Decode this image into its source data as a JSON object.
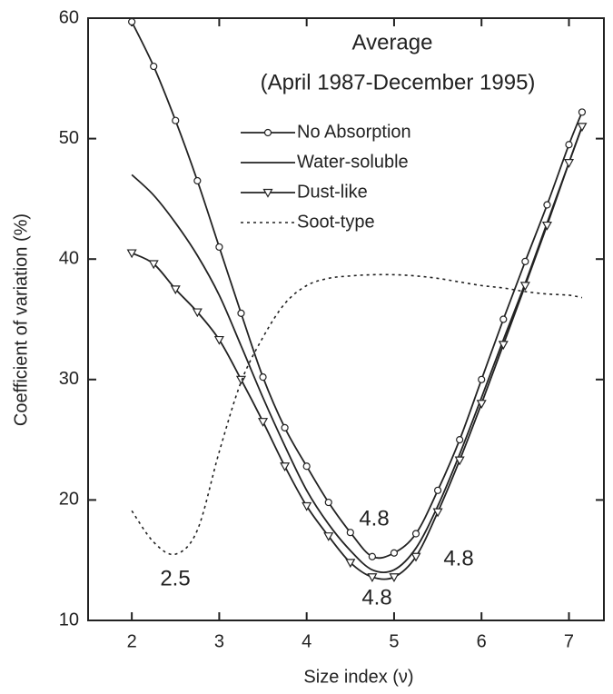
{
  "chart_data": {
    "type": "line",
    "title": "Average",
    "subtitle": "(April 1987-December 1995)",
    "x_label": "Size index (ν)",
    "y_label": "Coefficient of variation (%)",
    "x": [
      2,
      2.25,
      2.5,
      2.75,
      3,
      3.25,
      3.5,
      3.75,
      4,
      4.25,
      4.5,
      4.75,
      5,
      5.25,
      5.5,
      5.75,
      6,
      6.25,
      6.5,
      6.75,
      7,
      7.15
    ],
    "series": [
      {
        "name": "No Absorption",
        "color": "#222222",
        "marker": "circle",
        "values": [
          59.7,
          56,
          51.5,
          46.5,
          41,
          35.5,
          30.2,
          26,
          22.8,
          19.8,
          17.3,
          15.3,
          15.6,
          17.2,
          20.8,
          25,
          30,
          35,
          39.8,
          44.5,
          49.5,
          52.2
        ]
      },
      {
        "name": "Water-soluble",
        "color": "#222222",
        "marker": "none",
        "values": [
          47,
          45.3,
          43,
          40.3,
          37,
          32.8,
          28.5,
          24.5,
          20.8,
          18,
          15.8,
          14.2,
          14.2,
          16,
          19.5,
          23.8,
          28.5,
          33.3,
          38,
          43,
          48,
          51
        ]
      },
      {
        "name": "Dust-like",
        "color": "#222222",
        "marker": "triangle",
        "values": [
          40.5,
          39.6,
          37.5,
          35.6,
          33.3,
          30,
          26.5,
          22.8,
          19.5,
          17,
          14.8,
          13.6,
          13.6,
          15.3,
          19,
          23.3,
          28,
          32.9,
          37.8,
          42.8,
          48,
          51
        ]
      },
      {
        "name": "Soot-type",
        "color": "#222222",
        "marker": "none",
        "dashed": true,
        "values": [
          19.1,
          16.5,
          15.5,
          17.5,
          24,
          29.8,
          33.5,
          36.3,
          37.8,
          38.4,
          38.6,
          38.7,
          38.7,
          38.6,
          38.4,
          38.1,
          37.8,
          37.6,
          37.3,
          37.1,
          37,
          36.8
        ]
      }
    ],
    "annotations": [
      "4.8",
      "4.8",
      "4.8",
      "2.5"
    ],
    "xlim": [
      1.5,
      7.4
    ],
    "ylim": [
      10,
      60
    ],
    "xticks": [
      2,
      3,
      4,
      5,
      6,
      7
    ],
    "yticks": [
      10,
      20,
      30,
      40,
      50,
      60
    ]
  }
}
